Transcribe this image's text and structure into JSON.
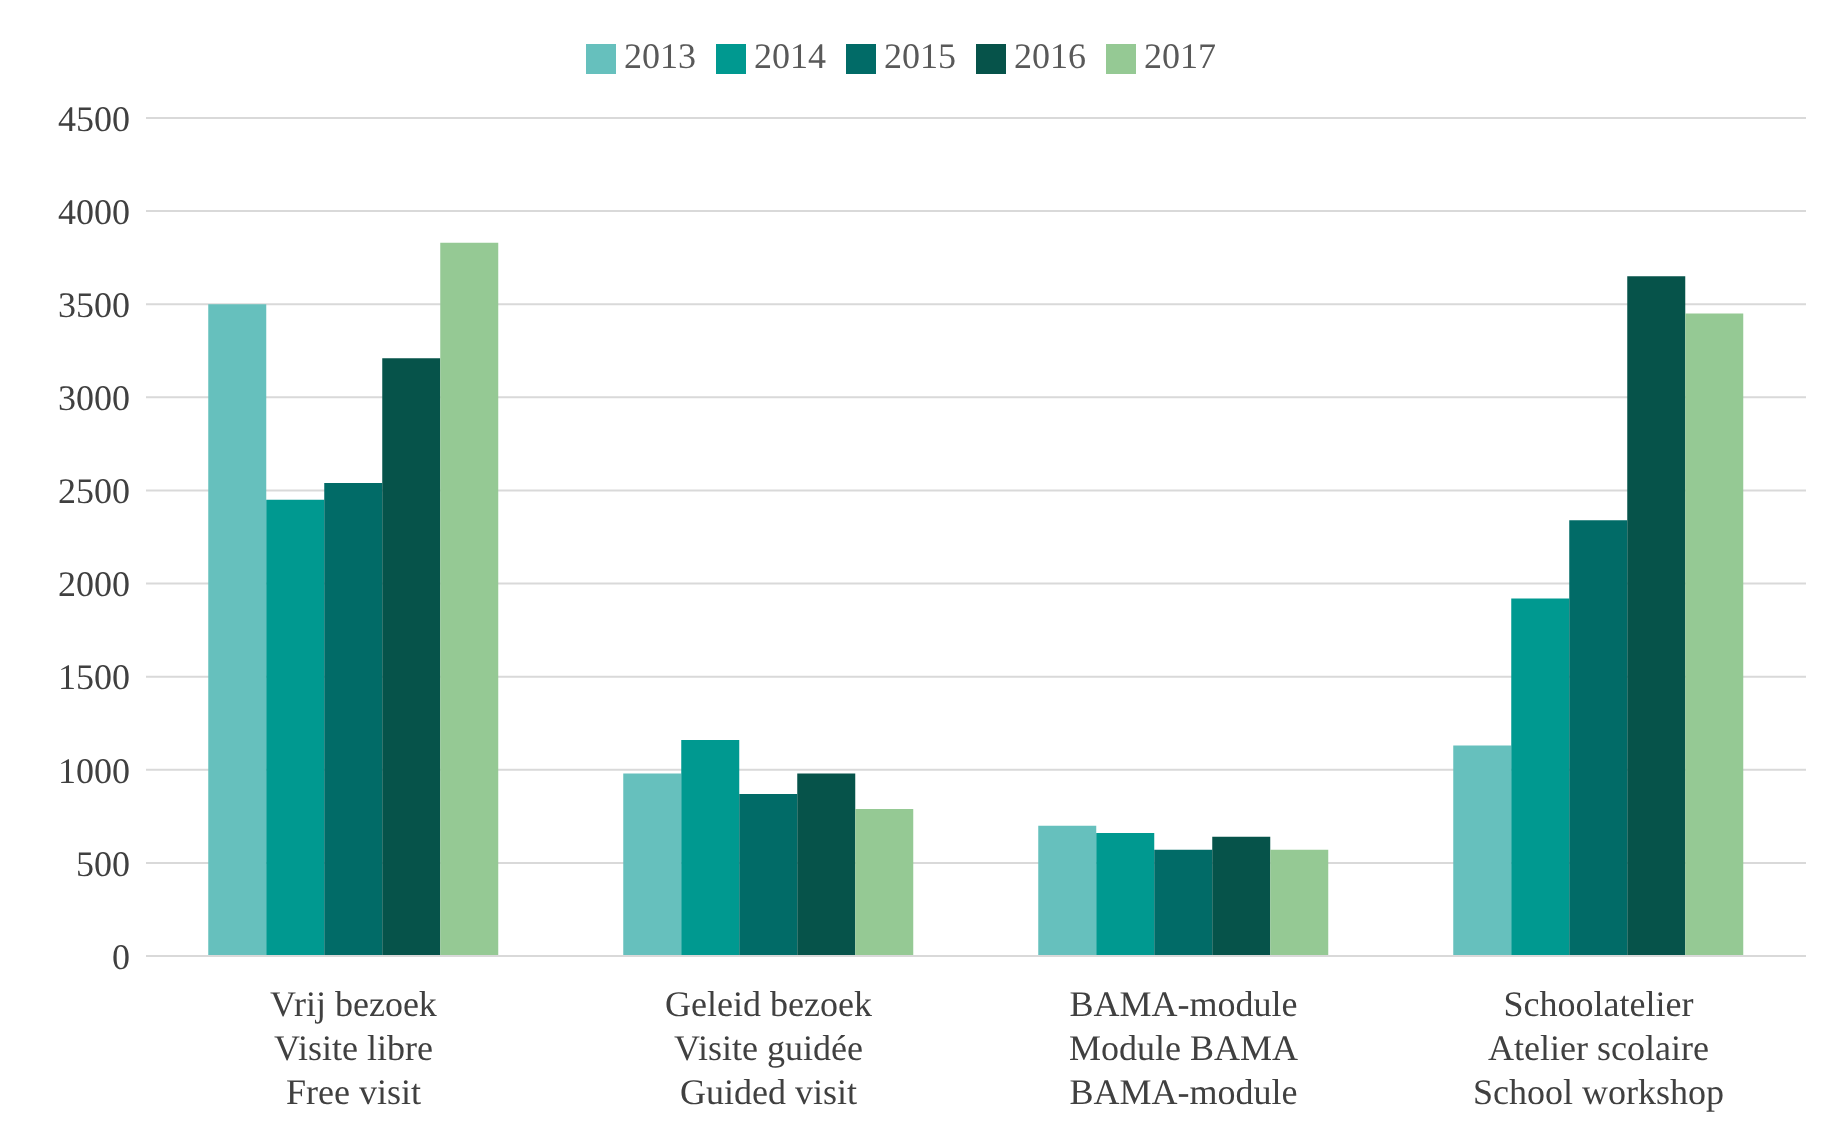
{
  "chart_data": {
    "type": "bar",
    "categories": [
      "Vrij bezoek\nVisite libre\nFree visit",
      "Geleid bezoek\nVisite guidée\nGuided visit",
      "BAMA-module\nModule BAMA\nBAMA-module",
      "Schoolatelier\nAtelier scolaire\nSchool workshop"
    ],
    "series": [
      {
        "name": "2013",
        "color": "#66c0bd",
        "values": [
          3500,
          980,
          700,
          1130
        ]
      },
      {
        "name": "2014",
        "color": "#009990",
        "values": [
          2450,
          1160,
          660,
          1920
        ]
      },
      {
        "name": "2015",
        "color": "#016b67",
        "values": [
          2540,
          870,
          570,
          2340
        ]
      },
      {
        "name": "2016",
        "color": "#06534a",
        "values": [
          3210,
          980,
          640,
          3650
        ]
      },
      {
        "name": "2017",
        "color": "#95c994",
        "values": [
          3830,
          790,
          570,
          3450
        ]
      }
    ],
    "ylim": [
      0,
      4500
    ],
    "yticks": [
      0,
      500,
      1000,
      1500,
      2000,
      2500,
      3000,
      3500,
      4000,
      4500
    ],
    "grid": "y",
    "legend": "top"
  }
}
